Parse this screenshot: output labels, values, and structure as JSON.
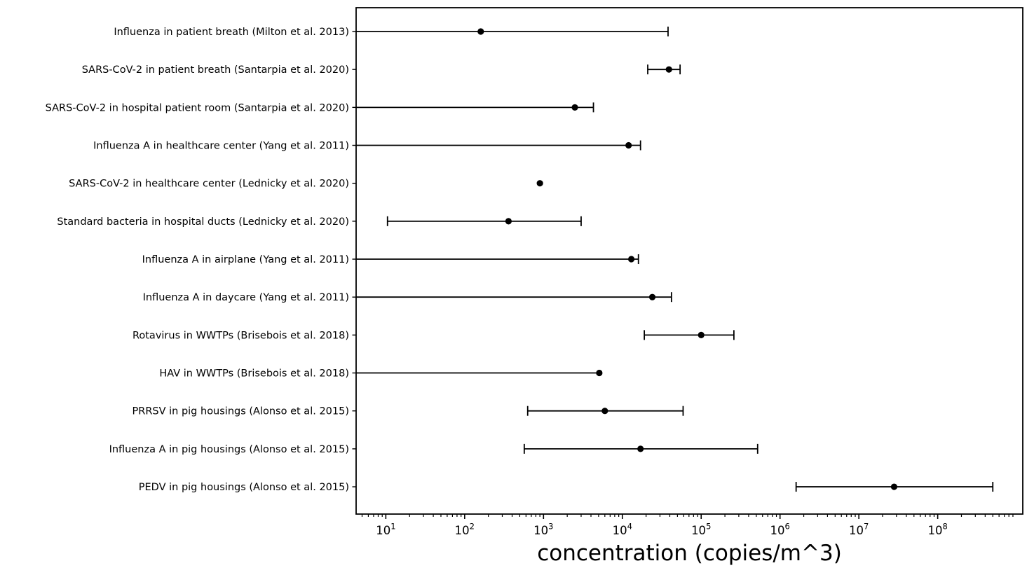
{
  "figure": {
    "background": "#ffffff",
    "foreground": "#000000"
  },
  "chart_data": {
    "type": "scatter",
    "subtype": "horizontal-errorbar",
    "title": "",
    "xlabel": "concentration (copies/m^3)",
    "ylabel": "",
    "x_scale": "log",
    "xlim": [
      4.2,
      1200000000
    ],
    "grid": false,
    "legend": "none",
    "marker": "filled-circle",
    "color": "#000000",
    "x_tick_exponents": [
      1,
      2,
      3,
      4,
      5,
      6,
      7,
      8
    ],
    "x_tick_labels": [
      "10^1",
      "10^2",
      "10^3",
      "10^4",
      "10^5",
      "10^6",
      "10^7",
      "10^8"
    ],
    "rows": [
      {
        "label": "Influenza in patient breath (Milton et al. 2013)",
        "value": 160,
        "lo": null,
        "hi": 38000,
        "lo_clipped_to_axis": true
      },
      {
        "label": "SARS-CoV-2 in patient breath (Santarpia et al. 2020)",
        "value": 39000,
        "lo": 21000,
        "hi": 54000,
        "lo_clipped_to_axis": false
      },
      {
        "label": "SARS-CoV-2 in hospital patient room (Santarpia et al. 2020)",
        "value": 2500,
        "lo": null,
        "hi": 4300,
        "lo_clipped_to_axis": true
      },
      {
        "label": "Influenza A in healthcare center (Yang et al. 2011)",
        "value": 12000,
        "lo": null,
        "hi": 17000,
        "lo_clipped_to_axis": true
      },
      {
        "label": "SARS-CoV-2 in healthcare center (Lednicky et al. 2020)",
        "value": 900,
        "lo": null,
        "hi": null,
        "lo_clipped_to_axis": false
      },
      {
        "label": "Standard bacteria in hospital ducts (Lednicky et al. 2020)",
        "value": 360,
        "lo": 10.5,
        "hi": 3000,
        "lo_clipped_to_axis": false
      },
      {
        "label": "Influenza A in airplane (Yang et al. 2011)",
        "value": 13000,
        "lo": null,
        "hi": 16000,
        "lo_clipped_to_axis": true
      },
      {
        "label": "Influenza A in daycare (Yang et al. 2011)",
        "value": 24000,
        "lo": null,
        "hi": 42000,
        "lo_clipped_to_axis": true
      },
      {
        "label": "Rotavirus in WWTPs (Brisebois et al. 2018)",
        "value": 100000,
        "lo": 19000,
        "hi": 260000,
        "lo_clipped_to_axis": false
      },
      {
        "label": "HAV in WWTPs (Brisebois et al. 2018)",
        "value": 5100,
        "lo": null,
        "hi": null,
        "lo_clipped_to_axis": true
      },
      {
        "label": "PRRSV in pig housings (Alonso et al. 2015)",
        "value": 6000,
        "lo": 630,
        "hi": 59000,
        "lo_clipped_to_axis": false
      },
      {
        "label": "Influenza A in pig housings (Alonso et al. 2015)",
        "value": 17000,
        "lo": 570,
        "hi": 520000,
        "lo_clipped_to_axis": false
      },
      {
        "label": "PEDV in pig housings (Alonso et al. 2015)",
        "value": 28000000,
        "lo": 1600000,
        "hi": 500000000,
        "lo_clipped_to_axis": false
      }
    ]
  }
}
